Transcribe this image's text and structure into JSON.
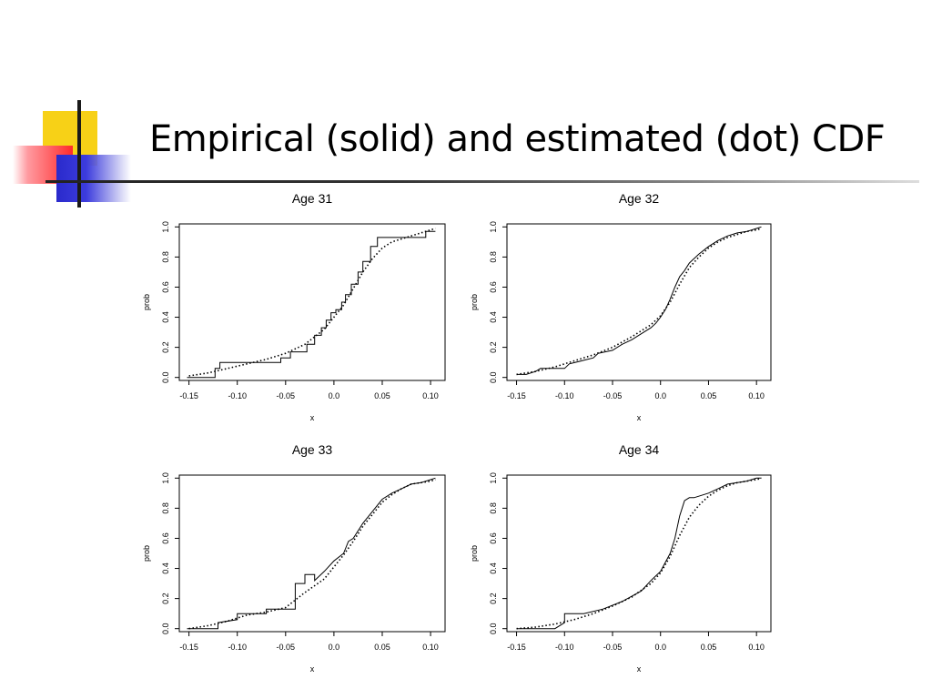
{
  "slide": {
    "title": "Empirical (solid) and estimated (dot) CDF"
  },
  "chart_data": [
    {
      "type": "line",
      "title": "Age 31",
      "xlabel": "x",
      "ylabel": "prob",
      "xlim": [
        -0.16,
        0.115
      ],
      "ylim": [
        -0.02,
        1.02
      ],
      "xticks": [
        "-0.15",
        "-0.10",
        "-0.05",
        "0.0",
        "0.05",
        "0.10"
      ],
      "yticks": [
        "0.0",
        "0.2",
        "0.4",
        "0.6",
        "0.8",
        "1.0"
      ],
      "series": [
        {
          "style": "solid",
          "x": [
            -0.152,
            -0.123,
            -0.123,
            -0.118,
            -0.118,
            -0.055,
            -0.055,
            -0.045,
            -0.045,
            -0.028,
            -0.028,
            -0.02,
            -0.02,
            -0.013,
            -0.013,
            -0.008,
            -0.008,
            -0.003,
            -0.003,
            0.002,
            0.002,
            0.008,
            0.008,
            0.012,
            0.012,
            0.018,
            0.018,
            0.025,
            0.025,
            0.03,
            0.03,
            0.038,
            0.038,
            0.045,
            0.045,
            0.095,
            0.095,
            0.105
          ],
          "y": [
            0.0,
            0.0,
            0.06,
            0.06,
            0.1,
            0.1,
            0.13,
            0.13,
            0.17,
            0.17,
            0.22,
            0.22,
            0.28,
            0.28,
            0.33,
            0.33,
            0.38,
            0.38,
            0.43,
            0.43,
            0.45,
            0.45,
            0.5,
            0.5,
            0.55,
            0.55,
            0.62,
            0.62,
            0.7,
            0.7,
            0.77,
            0.77,
            0.87,
            0.87,
            0.93,
            0.93,
            0.97,
            0.97
          ]
        },
        {
          "style": "dotted",
          "x": [
            -0.15,
            -0.13,
            -0.11,
            -0.09,
            -0.07,
            -0.05,
            -0.03,
            -0.01,
            0.0,
            0.01,
            0.02,
            0.03,
            0.04,
            0.05,
            0.06,
            0.07,
            0.08,
            0.09,
            0.1,
            0.105
          ],
          "y": [
            0.01,
            0.03,
            0.06,
            0.09,
            0.12,
            0.16,
            0.22,
            0.32,
            0.4,
            0.48,
            0.59,
            0.7,
            0.79,
            0.86,
            0.9,
            0.92,
            0.94,
            0.96,
            0.98,
            0.99
          ]
        }
      ]
    },
    {
      "type": "line",
      "title": "Age 32",
      "xlabel": "x",
      "ylabel": "prob",
      "xlim": [
        -0.16,
        0.115
      ],
      "ylim": [
        -0.02,
        1.02
      ],
      "xticks": [
        "-0.15",
        "-0.10",
        "-0.05",
        "0.0",
        "0.05",
        "0.10"
      ],
      "yticks": [
        "0.0",
        "0.2",
        "0.4",
        "0.6",
        "0.8",
        "1.0"
      ],
      "series": [
        {
          "style": "solid",
          "x": [
            -0.15,
            -0.14,
            -0.13,
            -0.125,
            -0.1,
            -0.095,
            -0.07,
            -0.065,
            -0.05,
            -0.04,
            -0.03,
            -0.02,
            -0.01,
            -0.005,
            0.0,
            0.005,
            0.01,
            0.015,
            0.02,
            0.025,
            0.03,
            0.04,
            0.05,
            0.06,
            0.07,
            0.08,
            0.09,
            0.1,
            0.105
          ],
          "y": [
            0.02,
            0.02,
            0.04,
            0.06,
            0.06,
            0.09,
            0.13,
            0.16,
            0.18,
            0.22,
            0.25,
            0.29,
            0.33,
            0.36,
            0.4,
            0.45,
            0.52,
            0.6,
            0.67,
            0.71,
            0.76,
            0.82,
            0.87,
            0.91,
            0.94,
            0.96,
            0.97,
            0.99,
            1.0
          ]
        },
        {
          "style": "dotted",
          "x": [
            -0.15,
            -0.13,
            -0.11,
            -0.09,
            -0.07,
            -0.05,
            -0.03,
            -0.01,
            0.0,
            0.01,
            0.02,
            0.03,
            0.04,
            0.05,
            0.06,
            0.07,
            0.08,
            0.09,
            0.1,
            0.105
          ],
          "y": [
            0.02,
            0.04,
            0.07,
            0.11,
            0.15,
            0.2,
            0.27,
            0.35,
            0.41,
            0.5,
            0.62,
            0.73,
            0.8,
            0.86,
            0.9,
            0.93,
            0.95,
            0.97,
            0.98,
            0.99
          ]
        }
      ]
    },
    {
      "type": "line",
      "title": "Age 33",
      "xlabel": "x",
      "ylabel": "prob",
      "xlim": [
        -0.16,
        0.115
      ],
      "ylim": [
        -0.02,
        1.02
      ],
      "xticks": [
        "-0.15",
        "-0.10",
        "-0.05",
        "0.0",
        "0.05",
        "0.10"
      ],
      "yticks": [
        "0.0",
        "0.2",
        "0.4",
        "0.6",
        "0.8",
        "1.0"
      ],
      "series": [
        {
          "style": "solid",
          "x": [
            -0.152,
            -0.12,
            -0.12,
            -0.1,
            -0.1,
            -0.07,
            -0.07,
            -0.04,
            -0.04,
            -0.03,
            -0.03,
            -0.02,
            -0.02,
            -0.01,
            0.0,
            0.01,
            0.015,
            0.02,
            0.03,
            0.04,
            0.05,
            0.06,
            0.07,
            0.08,
            0.09,
            0.1,
            0.105
          ],
          "y": [
            0.0,
            0.0,
            0.04,
            0.06,
            0.1,
            0.1,
            0.13,
            0.13,
            0.3,
            0.3,
            0.36,
            0.36,
            0.32,
            0.38,
            0.45,
            0.5,
            0.58,
            0.6,
            0.7,
            0.78,
            0.86,
            0.9,
            0.93,
            0.96,
            0.97,
            0.99,
            1.0
          ]
        },
        {
          "style": "dotted",
          "x": [
            -0.15,
            -0.13,
            -0.11,
            -0.09,
            -0.07,
            -0.05,
            -0.03,
            -0.01,
            0.0,
            0.01,
            0.02,
            0.03,
            0.04,
            0.05,
            0.06,
            0.07,
            0.08,
            0.09,
            0.1,
            0.105
          ],
          "y": [
            0.0,
            0.02,
            0.05,
            0.09,
            0.11,
            0.14,
            0.24,
            0.33,
            0.41,
            0.49,
            0.58,
            0.68,
            0.76,
            0.84,
            0.89,
            0.93,
            0.96,
            0.97,
            0.98,
            0.99
          ]
        }
      ]
    },
    {
      "type": "line",
      "title": "Age 34",
      "xlabel": "x",
      "ylabel": "prob",
      "xlim": [
        -0.16,
        0.115
      ],
      "ylim": [
        -0.02,
        1.02
      ],
      "xticks": [
        "-0.15",
        "-0.10",
        "-0.05",
        "0.0",
        "0.05",
        "0.10"
      ],
      "yticks": [
        "0.0",
        "0.2",
        "0.4",
        "0.6",
        "0.8",
        "1.0"
      ],
      "series": [
        {
          "style": "solid",
          "x": [
            -0.15,
            -0.11,
            -0.1,
            -0.1,
            -0.08,
            -0.06,
            -0.04,
            -0.02,
            -0.01,
            0.0,
            0.01,
            0.015,
            0.02,
            0.025,
            0.03,
            0.035,
            0.05,
            0.06,
            0.07,
            0.08,
            0.09,
            0.1,
            0.105
          ],
          "y": [
            0.0,
            0.0,
            0.04,
            0.1,
            0.1,
            0.13,
            0.18,
            0.25,
            0.32,
            0.38,
            0.5,
            0.6,
            0.75,
            0.85,
            0.87,
            0.87,
            0.9,
            0.93,
            0.96,
            0.97,
            0.98,
            1.0,
            1.0
          ]
        },
        {
          "style": "dotted",
          "x": [
            -0.15,
            -0.13,
            -0.11,
            -0.09,
            -0.07,
            -0.05,
            -0.03,
            -0.01,
            0.0,
            0.01,
            0.02,
            0.03,
            0.04,
            0.05,
            0.06,
            0.07,
            0.08,
            0.09,
            0.1,
            0.105
          ],
          "y": [
            0.0,
            0.01,
            0.03,
            0.06,
            0.1,
            0.15,
            0.21,
            0.3,
            0.37,
            0.48,
            0.62,
            0.74,
            0.82,
            0.88,
            0.92,
            0.95,
            0.97,
            0.98,
            0.99,
            1.0
          ]
        }
      ]
    }
  ]
}
